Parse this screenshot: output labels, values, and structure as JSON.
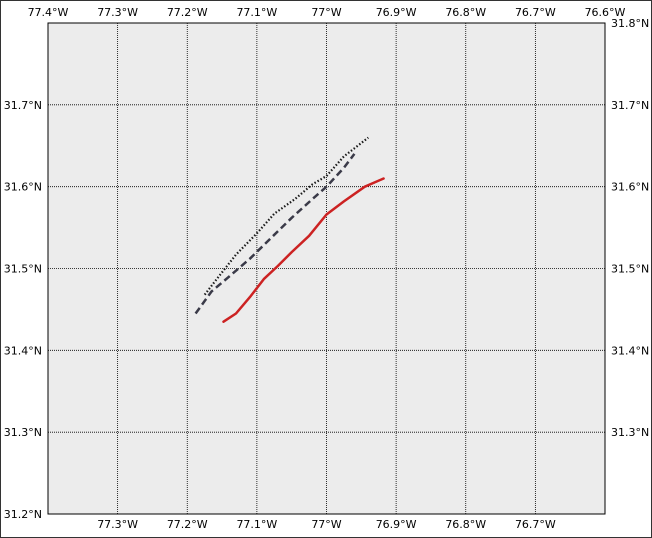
{
  "map": {
    "background_color": "#ececec",
    "grid_color": "#000000",
    "lon_range": [
      -77.4,
      -76.6
    ],
    "lat_range": [
      31.2,
      31.8
    ],
    "lon_ticks": [
      {
        "value": -77.4,
        "label": "77.4°W",
        "top": true,
        "bottom": false
      },
      {
        "value": -77.3,
        "label": "77.3°W",
        "top": true,
        "bottom": true
      },
      {
        "value": -77.2,
        "label": "77.2°W",
        "top": true,
        "bottom": true
      },
      {
        "value": -77.1,
        "label": "77.1°W",
        "top": true,
        "bottom": true
      },
      {
        "value": -77.0,
        "label": "77°W",
        "top": true,
        "bottom": true
      },
      {
        "value": -76.9,
        "label": "76.9°W",
        "top": true,
        "bottom": true
      },
      {
        "value": -76.8,
        "label": "76.8°W",
        "top": true,
        "bottom": true
      },
      {
        "value": -76.7,
        "label": "76.7°W",
        "top": true,
        "bottom": true
      },
      {
        "value": -76.6,
        "label": "76.6°W",
        "top": true,
        "bottom": false
      }
    ],
    "lat_ticks": [
      {
        "value": 31.2,
        "label": "31.2°N",
        "left": true,
        "right": false
      },
      {
        "value": 31.3,
        "label": "31.3°N",
        "left": true,
        "right": true
      },
      {
        "value": 31.4,
        "label": "31.4°N",
        "left": true,
        "right": true
      },
      {
        "value": 31.5,
        "label": "31.5°N",
        "left": true,
        "right": true
      },
      {
        "value": 31.6,
        "label": "31.6°N",
        "left": true,
        "right": true
      },
      {
        "value": 31.7,
        "label": "31.7°N",
        "left": true,
        "right": true
      },
      {
        "value": 31.8,
        "label": "31.8°N",
        "left": false,
        "right": true
      }
    ],
    "tracks": [
      {
        "style": "solid",
        "color": "#cc2222",
        "points": [
          [
            -77.148,
            31.435
          ],
          [
            -77.13,
            31.445
          ],
          [
            -77.11,
            31.465
          ],
          [
            -77.09,
            31.487
          ],
          [
            -77.07,
            31.503
          ],
          [
            -77.05,
            31.52
          ],
          [
            -77.025,
            31.54
          ],
          [
            -77.0,
            31.566
          ],
          [
            -76.975,
            31.582
          ],
          [
            -76.945,
            31.6
          ],
          [
            -76.918,
            31.61
          ]
        ]
      },
      {
        "style": "dashed",
        "color": "#3a3a48",
        "points": [
          [
            -77.188,
            31.445
          ],
          [
            -77.165,
            31.472
          ],
          [
            -77.14,
            31.49
          ],
          [
            -77.11,
            31.512
          ],
          [
            -77.08,
            31.537
          ],
          [
            -77.05,
            31.562
          ],
          [
            -77.02,
            31.585
          ],
          [
            -77.0,
            31.6
          ],
          [
            -76.975,
            31.623
          ],
          [
            -76.96,
            31.64
          ]
        ]
      },
      {
        "style": "dotted",
        "color": "#1a1a1a",
        "points": [
          [
            -77.175,
            31.468
          ],
          [
            -77.155,
            31.49
          ],
          [
            -77.13,
            31.517
          ],
          [
            -77.1,
            31.543
          ],
          [
            -77.075,
            31.567
          ],
          [
            -77.045,
            31.585
          ],
          [
            -77.02,
            31.603
          ],
          [
            -77.0,
            31.613
          ],
          [
            -76.975,
            31.637
          ],
          [
            -76.94,
            31.66
          ]
        ]
      }
    ]
  }
}
